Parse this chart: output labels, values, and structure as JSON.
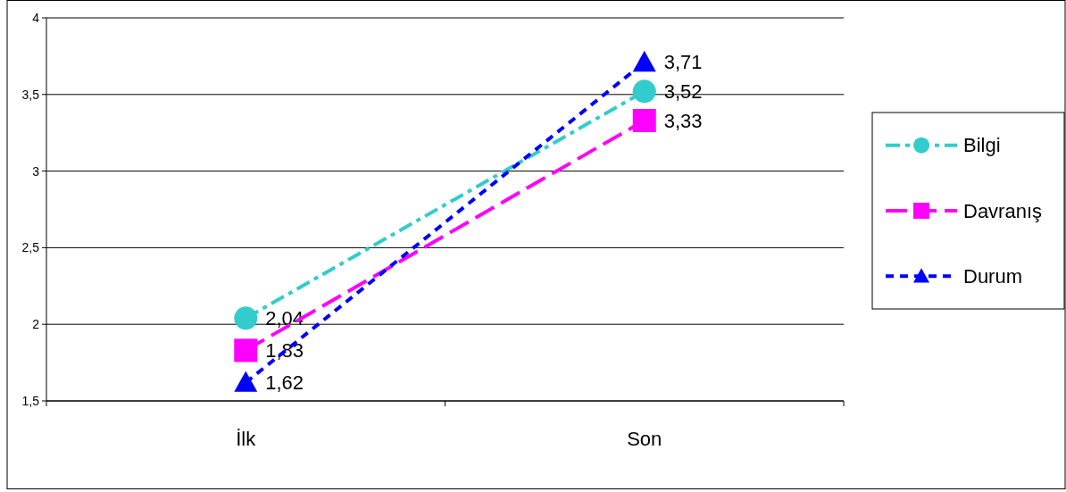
{
  "chart_data": {
    "type": "line",
    "categories": [
      "İlk",
      "Son"
    ],
    "series": [
      {
        "name": "Bilgi",
        "color": "#33cccc",
        "values": [
          2.04,
          3.52
        ],
        "value_labels": [
          "2,04",
          "3,52"
        ],
        "marker": "circle",
        "line_style": "dashed"
      },
      {
        "name": "Davranış",
        "color": "#ff00ff",
        "values": [
          1.83,
          3.33
        ],
        "value_labels": [
          "1,83",
          "3,33"
        ],
        "marker": "square",
        "line_style": "dashed"
      },
      {
        "name": "Durum",
        "color": "#0000ff",
        "values": [
          1.62,
          3.71
        ],
        "value_labels": [
          "1,62",
          "3,71"
        ],
        "marker": "triangle",
        "line_style": "dashed"
      }
    ],
    "ylim": [
      1.5,
      4
    ],
    "yticks": [
      {
        "value": 1.5,
        "label": "1,5"
      },
      2,
      {
        "value": 2.5,
        "label": "2,5"
      },
      3,
      {
        "value": 3.5,
        "label": "3,5"
      },
      4
    ],
    "grid": "y",
    "legend": "right"
  }
}
